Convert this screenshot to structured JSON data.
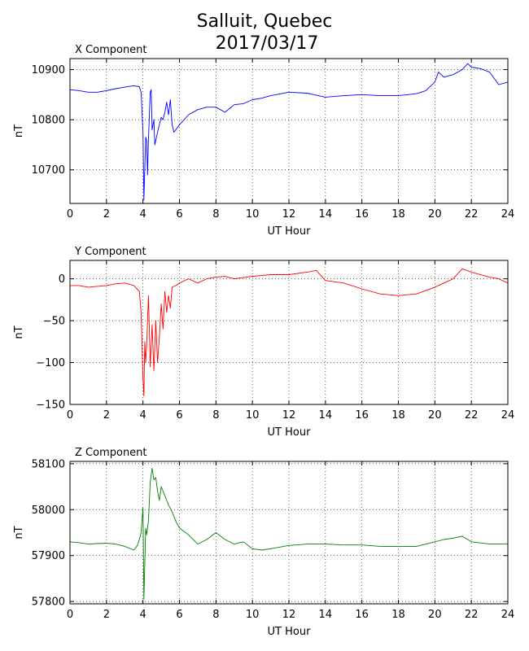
{
  "figure": {
    "title_line1": "Salluit, Quebec",
    "title_line2": "2017/03/17"
  },
  "chart_data": [
    {
      "type": "line",
      "panel_title": "X Component",
      "xlabel": "UT Hour",
      "ylabel": "nT",
      "xlim": [
        0,
        24
      ],
      "ylim": [
        10633,
        10922
      ],
      "xticks": [
        0,
        2,
        4,
        6,
        8,
        10,
        12,
        14,
        16,
        18,
        20,
        22,
        24
      ],
      "yticks": [
        10700,
        10800,
        10900
      ],
      "ytick_labels": [
        "10700",
        "10800",
        "10900"
      ],
      "grid": true,
      "color": "#0000ff",
      "series": [
        {
          "x": [
            0,
            0.5,
            1,
            1.5,
            2,
            2.5,
            3,
            3.5,
            3.8,
            3.9,
            4.0,
            4.05,
            4.1,
            4.15,
            4.2,
            4.25,
            4.3,
            4.4,
            4.45,
            4.5,
            4.6,
            4.65,
            4.8,
            4.9,
            5.0,
            5.1,
            5.2,
            5.3,
            5.4,
            5.5,
            5.6,
            5.7,
            5.8,
            6.0,
            6.5,
            7,
            7.5,
            8,
            8.5,
            9,
            9.5,
            10,
            10.5,
            11,
            12,
            13,
            14,
            15,
            16,
            17,
            18,
            19,
            19.5,
            20,
            20.2,
            20.5,
            21,
            21.5,
            21.8,
            22,
            22.5,
            23,
            23.5,
            24
          ],
          "y": [
            10860,
            10858,
            10855,
            10855,
            10858,
            10862,
            10865,
            10868,
            10866,
            10855,
            10775,
            10640,
            10700,
            10765,
            10760,
            10690,
            10760,
            10855,
            10860,
            10780,
            10800,
            10750,
            10775,
            10790,
            10805,
            10800,
            10815,
            10835,
            10810,
            10840,
            10790,
            10775,
            10780,
            10790,
            10810,
            10820,
            10825,
            10825,
            10815,
            10830,
            10832,
            10840,
            10843,
            10848,
            10855,
            10853,
            10845,
            10848,
            10850,
            10848,
            10848,
            10852,
            10858,
            10875,
            10895,
            10885,
            10890,
            10900,
            10912,
            10905,
            10902,
            10895,
            10870,
            10875
          ]
        }
      ]
    },
    {
      "type": "line",
      "panel_title": "Y Component",
      "xlabel": "UT Hour",
      "ylabel": "nT",
      "xlim": [
        0,
        24
      ],
      "ylim": [
        -150,
        22
      ],
      "xticks": [
        0,
        2,
        4,
        6,
        8,
        10,
        12,
        14,
        16,
        18,
        20,
        22,
        24
      ],
      "yticks": [
        -150,
        -100,
        -50,
        0
      ],
      "ytick_labels": [
        "−150",
        "−100",
        "−50",
        "0"
      ],
      "grid": true,
      "color": "#ff0000",
      "series": [
        {
          "x": [
            0,
            0.5,
            1,
            1.5,
            2,
            2.5,
            3,
            3.5,
            3.8,
            3.9,
            4.0,
            4.05,
            4.1,
            4.15,
            4.2,
            4.3,
            4.35,
            4.4,
            4.5,
            4.6,
            4.7,
            4.8,
            4.9,
            5.0,
            5.1,
            5.2,
            5.3,
            5.4,
            5.5,
            5.6,
            5.8,
            6.0,
            6.5,
            7,
            7.5,
            8,
            8.5,
            9,
            10,
            11,
            12,
            13,
            13.5,
            14,
            15,
            16,
            17,
            18,
            19,
            20,
            20.5,
            21,
            21.5,
            22,
            23,
            23.5,
            24
          ],
          "y": [
            -8,
            -8,
            -10,
            -9,
            -8,
            -6,
            -5,
            -8,
            -15,
            -40,
            -120,
            -140,
            -75,
            -100,
            -80,
            -20,
            -60,
            -105,
            -55,
            -110,
            -50,
            -100,
            -70,
            -30,
            -60,
            -15,
            -40,
            -20,
            -35,
            -10,
            -8,
            -5,
            0,
            -5,
            0,
            2,
            3,
            0,
            3,
            5,
            5,
            8,
            10,
            -2,
            -5,
            -12,
            -18,
            -20,
            -18,
            -10,
            -5,
            0,
            12,
            8,
            2,
            0,
            -5
          ]
        }
      ]
    },
    {
      "type": "line",
      "panel_title": "Z Component",
      "xlabel": "UT Hour",
      "ylabel": "nT",
      "xlim": [
        0,
        24
      ],
      "ylim": [
        57795,
        58105
      ],
      "xticks": [
        0,
        2,
        4,
        6,
        8,
        10,
        12,
        14,
        16,
        18,
        20,
        22,
        24
      ],
      "yticks": [
        57800,
        57900,
        58000,
        58100
      ],
      "ytick_labels": [
        "57800",
        "57900",
        "58000",
        "58100"
      ],
      "grid": true,
      "color": "#008000",
      "series": [
        {
          "x": [
            0,
            0.5,
            1,
            1.5,
            2,
            2.5,
            3,
            3.5,
            3.7,
            3.8,
            3.9,
            4.0,
            4.05,
            4.1,
            4.15,
            4.2,
            4.3,
            4.4,
            4.5,
            4.6,
            4.7,
            4.8,
            4.9,
            5.0,
            5.2,
            5.4,
            5.6,
            5.8,
            6.0,
            6.5,
            7,
            7.5,
            8,
            8.5,
            9,
            9.5,
            10,
            10.5,
            11,
            12,
            13,
            14,
            15,
            16,
            17,
            18,
            19,
            20,
            20.5,
            21,
            21.5,
            22,
            23,
            24
          ],
          "y": [
            57930,
            57928,
            57925,
            57926,
            57927,
            57925,
            57920,
            57912,
            57922,
            57935,
            57950,
            58005,
            57805,
            57880,
            57960,
            57945,
            57975,
            58060,
            58090,
            58065,
            58070,
            58040,
            58020,
            58050,
            58030,
            58010,
            57995,
            57975,
            57960,
            57945,
            57925,
            57935,
            57950,
            57935,
            57925,
            57930,
            57915,
            57912,
            57915,
            57922,
            57925,
            57925,
            57923,
            57923,
            57920,
            57920,
            57920,
            57930,
            57935,
            57938,
            57942,
            57930,
            57925,
            57925
          ]
        }
      ]
    }
  ]
}
